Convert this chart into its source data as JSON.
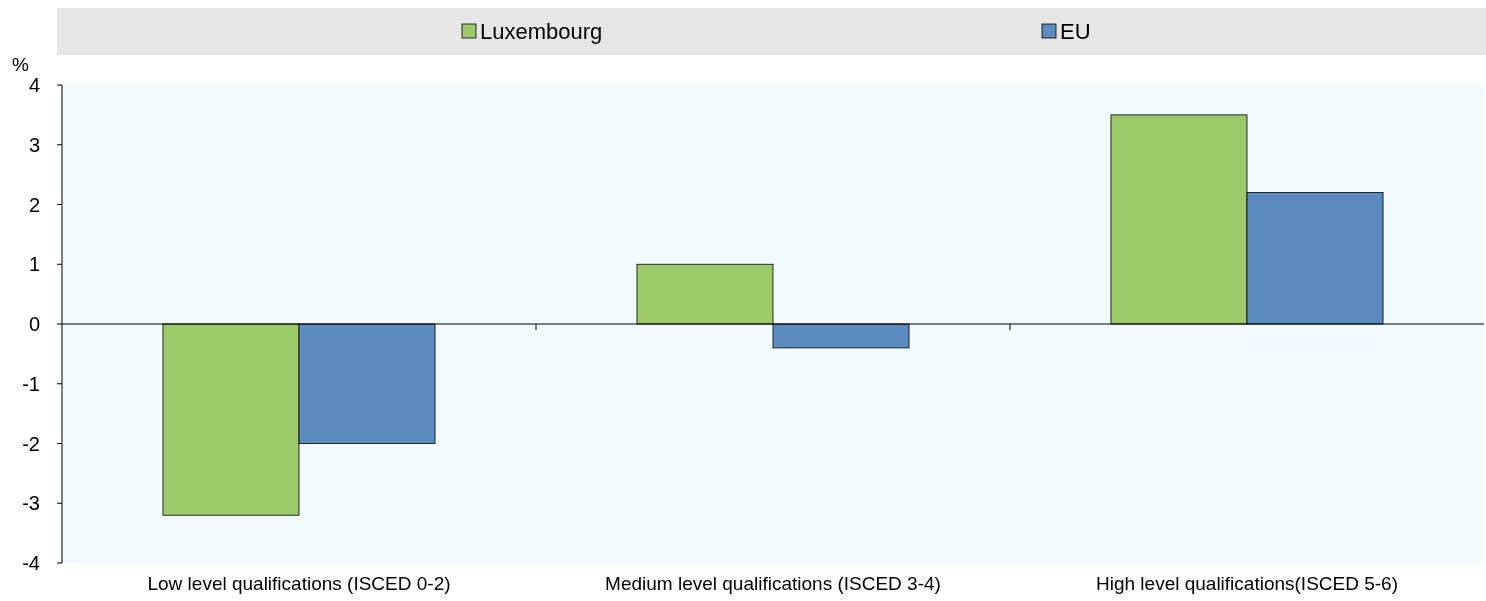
{
  "chart_data": {
    "type": "bar",
    "ylabel": "%",
    "categories": [
      "Low level qualifications (ISCED 0-2)",
      "Medium level qualifications (ISCED 3-4)",
      "High level qualifications(ISCED 5-6)"
    ],
    "series": [
      {
        "name": "Luxembourg",
        "color": "#9dc96a",
        "values": [
          -3.2,
          1.0,
          3.5
        ]
      },
      {
        "name": "EU",
        "color": "#5b8bbf",
        "values": [
          -2.0,
          -0.4,
          2.2
        ]
      }
    ],
    "ylim": [
      -4,
      4
    ],
    "yticks": [
      -4,
      -3,
      -2,
      -1,
      0,
      1,
      2,
      3,
      4
    ],
    "legend": "top"
  }
}
